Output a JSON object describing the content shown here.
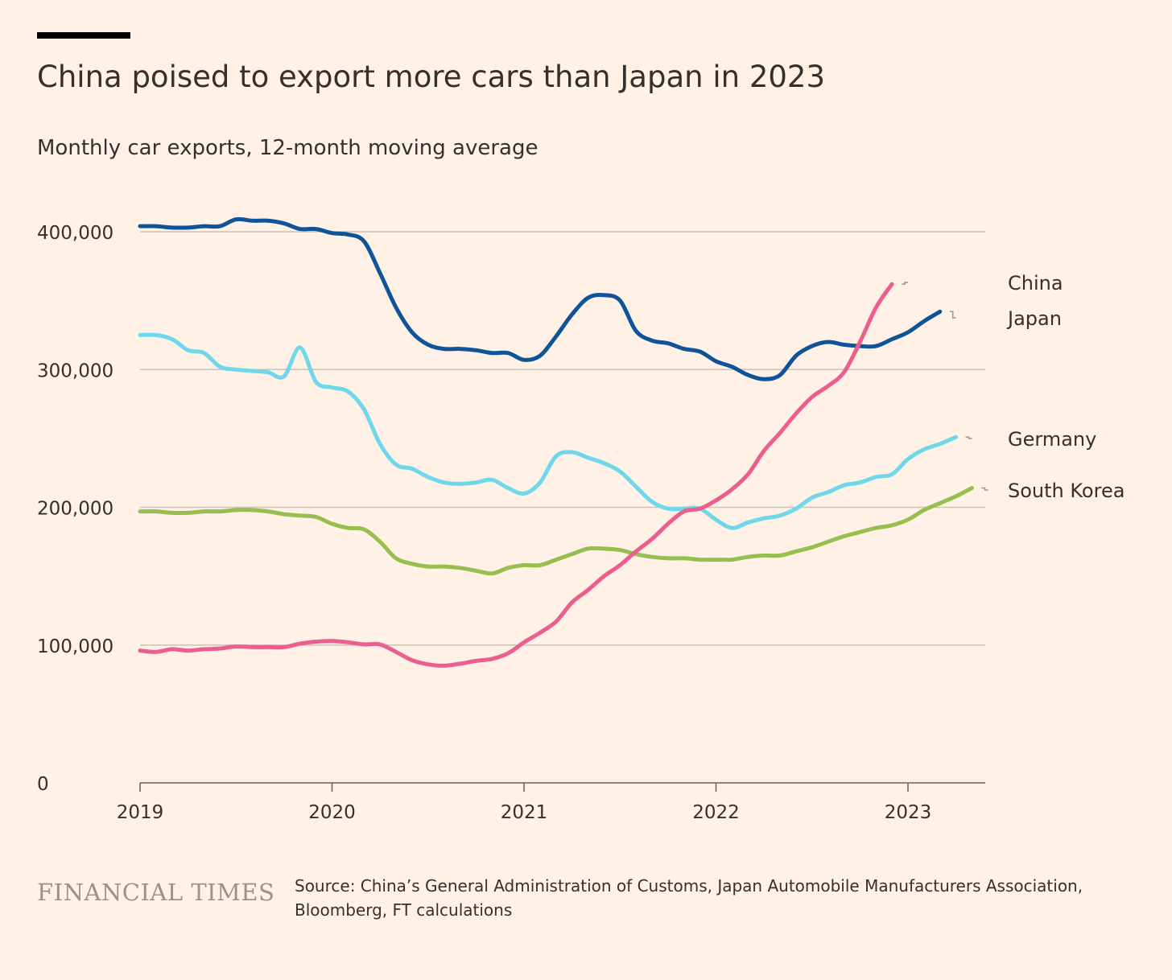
{
  "header": {
    "title": "China poised to export more cars than Japan in 2023",
    "subtitle": "Monthly car exports, 12-month moving average"
  },
  "footer": {
    "brand": "FINANCIAL TIMES",
    "source": "Source: China’s General Administration of Customs, Japan Automobile Manufacturers Association, Bloomberg, FT calculations"
  },
  "colors": {
    "background": "#fff1e5",
    "gridline": "#ccc1b7",
    "axis": "#66605c",
    "text": "#33302e",
    "japan": "#0f5499",
    "germany": "#6ed8ea",
    "south_korea": "#96bf50",
    "china": "#eb5e8d"
  },
  "chart_data": {
    "type": "line",
    "title": "China poised to export more cars than Japan in 2023",
    "subtitle": "Monthly car exports, 12-month moving average",
    "xlabel": "",
    "ylabel": "",
    "x_ticks": [
      "2019",
      "2020",
      "2021",
      "2022",
      "2023"
    ],
    "y_ticks": [
      0,
      100000,
      200000,
      300000,
      400000
    ],
    "y_tick_labels": [
      "0",
      "100,000",
      "200,000",
      "300,000",
      "400,000"
    ],
    "xlim": [
      "2019-01",
      "2023-06"
    ],
    "ylim": [
      0,
      400000
    ],
    "grid": "horizontal",
    "legend": "direct labels at right end of lines",
    "x": [
      "2019-01",
      "2019-02",
      "2019-03",
      "2019-04",
      "2019-05",
      "2019-06",
      "2019-07",
      "2019-08",
      "2019-09",
      "2019-10",
      "2019-11",
      "2019-12",
      "2020-01",
      "2020-02",
      "2020-03",
      "2020-04",
      "2020-05",
      "2020-06",
      "2020-07",
      "2020-08",
      "2020-09",
      "2020-10",
      "2020-11",
      "2020-12",
      "2021-01",
      "2021-02",
      "2021-03",
      "2021-04",
      "2021-05",
      "2021-06",
      "2021-07",
      "2021-08",
      "2021-09",
      "2021-10",
      "2021-11",
      "2021-12",
      "2022-01",
      "2022-02",
      "2022-03",
      "2022-04",
      "2022-05",
      "2022-06",
      "2022-07",
      "2022-08",
      "2022-09",
      "2022-10",
      "2022-11",
      "2022-12",
      "2023-01",
      "2023-02",
      "2023-03",
      "2023-04",
      "2023-05",
      "2023-06"
    ],
    "series": [
      {
        "name": "China",
        "color_key": "china",
        "values": [
          96000,
          95000,
          97000,
          96000,
          97000,
          97500,
          99000,
          98500,
          98500,
          98500,
          101000,
          102500,
          103000,
          102000,
          100500,
          100500,
          95000,
          89000,
          86000,
          85000,
          86500,
          88500,
          90000,
          94000,
          102000,
          109000,
          117000,
          131000,
          140000,
          150000,
          158000,
          168000,
          177000,
          188000,
          197000,
          199000,
          205000,
          213000,
          224000,
          241000,
          254000,
          268000,
          280000,
          288000,
          298000,
          320000,
          345000,
          362000,
          null,
          null,
          null,
          null,
          null,
          null
        ]
      },
      {
        "name": "Japan",
        "color_key": "japan",
        "values": [
          404000,
          404000,
          403000,
          403000,
          404000,
          404000,
          409000,
          408000,
          408000,
          406000,
          402000,
          402000,
          399000,
          398000,
          393000,
          370000,
          345000,
          327000,
          318000,
          315000,
          315000,
          314000,
          312000,
          312000,
          307000,
          310000,
          324000,
          340000,
          352000,
          354000,
          350000,
          328000,
          321000,
          319000,
          315000,
          313000,
          306000,
          302000,
          296000,
          293000,
          296000,
          310000,
          317000,
          320000,
          318000,
          317000,
          317000,
          322000,
          327000,
          335000,
          342000,
          null,
          null,
          null
        ]
      },
      {
        "name": "Germany",
        "color_key": "germany",
        "values": [
          325000,
          325000,
          322000,
          314000,
          312000,
          302000,
          300000,
          299000,
          298000,
          295000,
          316000,
          291000,
          287000,
          284000,
          271000,
          246000,
          231000,
          228000,
          222000,
          218000,
          217000,
          218000,
          220000,
          214000,
          210000,
          218000,
          237000,
          240000,
          236000,
          232000,
          226000,
          215000,
          204000,
          199000,
          199000,
          199000,
          191000,
          185000,
          189000,
          192000,
          194000,
          199000,
          207000,
          211000,
          216000,
          218000,
          222000,
          224000,
          235000,
          242000,
          246000,
          251000,
          null,
          null
        ]
      },
      {
        "name": "South Korea",
        "color_key": "south_korea",
        "values": [
          197000,
          197000,
          196000,
          196000,
          197000,
          197000,
          198000,
          198000,
          197000,
          195000,
          194000,
          193000,
          188000,
          185000,
          184000,
          175000,
          163000,
          159000,
          157000,
          157000,
          156000,
          154000,
          152000,
          156000,
          158000,
          158000,
          162000,
          166000,
          170000,
          170000,
          169000,
          166000,
          164000,
          163000,
          163000,
          162000,
          162000,
          162000,
          164000,
          165000,
          165000,
          168000,
          171000,
          175000,
          179000,
          182000,
          185000,
          187000,
          191000,
          198000,
          203000,
          208000,
          214000,
          null
        ]
      }
    ]
  }
}
